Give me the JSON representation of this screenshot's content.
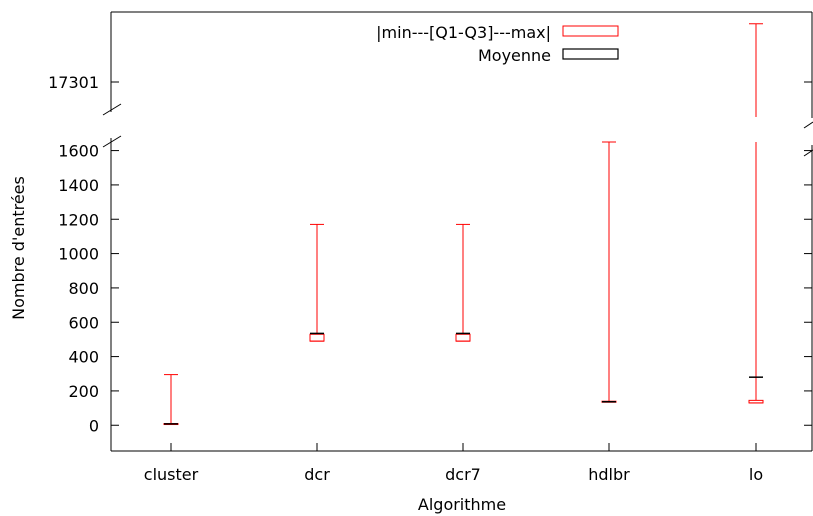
{
  "chart_data": {
    "type": "box",
    "xlabel": "Algorithme",
    "ylabel": "Nombre d'entrées",
    "categories": [
      "cluster",
      "dcr",
      "dcr7",
      "hdlbr",
      "lo"
    ],
    "ylim_lower": [
      -150,
      1650
    ],
    "upper_segment_ticks": [
      17301
    ],
    "lower_ticks": [
      0,
      200,
      400,
      600,
      800,
      1000,
      1200,
      1400,
      1600
    ],
    "axis_break": true,
    "grid": false,
    "legend_position": "top-right",
    "legend": [
      {
        "label": "|min---[Q1-Q3]---max|",
        "color": "#ff0000",
        "kind": "box"
      },
      {
        "label": "Moyenne",
        "color": "#000000",
        "kind": "mean"
      }
    ],
    "boxes": [
      {
        "category": "cluster",
        "min": 5,
        "q1": 5,
        "q3": 10,
        "max": 295,
        "mean": 8
      },
      {
        "category": "dcr",
        "min": 490,
        "q1": 490,
        "q3": 530,
        "max": 1170,
        "mean": 535
      },
      {
        "category": "dcr7",
        "min": 490,
        "q1": 490,
        "q3": 530,
        "max": 1170,
        "mean": 535
      },
      {
        "category": "hdlbr",
        "min": 135,
        "q1": 135,
        "q3": 140,
        "max": 1650,
        "mean": 137,
        "max_clipped": true
      },
      {
        "category": "lo",
        "min": 130,
        "q1": 130,
        "q3": 145,
        "max": 17400,
        "mean": 280,
        "max_clipped": true
      }
    ]
  }
}
